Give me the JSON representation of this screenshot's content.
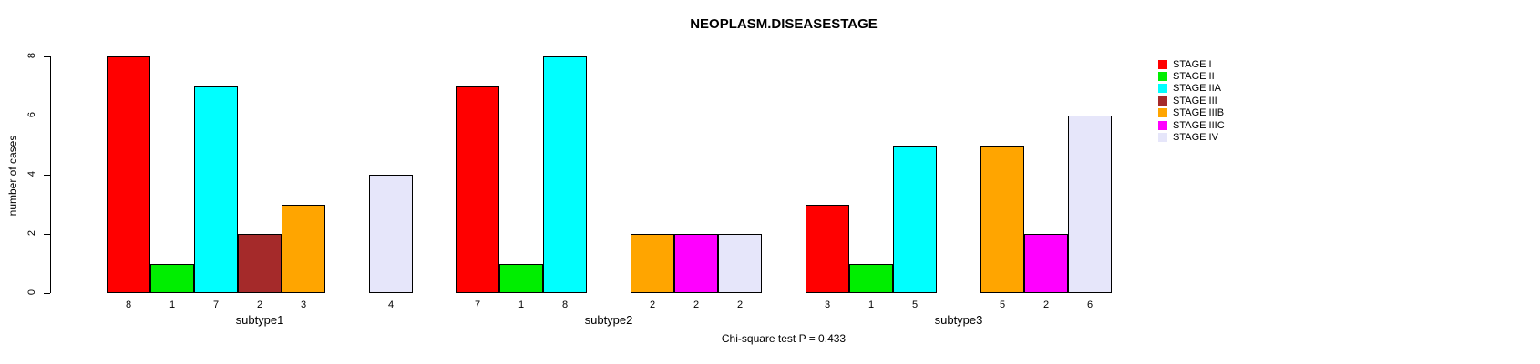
{
  "title": "NEOPLASM.DISEASESTAGE",
  "footer": {
    "annotation": "Chi-square test P = 0.433"
  },
  "y_axis": {
    "label": "number of cases",
    "ticks": [
      0,
      2,
      4,
      6,
      8
    ]
  },
  "legend": {
    "position": "top-right"
  },
  "chart_data": {
    "type": "bar",
    "title": "NEOPLASM.DISEASESTAGE",
    "xlabel": "",
    "ylabel": "number of cases",
    "ylim": [
      0,
      8
    ],
    "y_ticks": [
      0,
      2,
      4,
      6,
      8
    ],
    "grid": false,
    "legend_position": "right",
    "categories": [
      "subtype1",
      "subtype2",
      "subtype3"
    ],
    "series": [
      {
        "name": "STAGE I",
        "color": "#FF0000",
        "values": [
          8,
          7,
          3
        ]
      },
      {
        "name": "STAGE II",
        "color": "#00EE00",
        "values": [
          1,
          1,
          1
        ]
      },
      {
        "name": "STAGE IIA",
        "color": "#00FFFF",
        "values": [
          7,
          8,
          5
        ]
      },
      {
        "name": "STAGE III",
        "color": "#A52A2A",
        "values": [
          2,
          0,
          0
        ]
      },
      {
        "name": "STAGE IIIB",
        "color": "#FFA500",
        "values": [
          3,
          2,
          5
        ]
      },
      {
        "name": "STAGE IIIC",
        "color": "#FF00FF",
        "values": [
          0,
          2,
          2
        ]
      },
      {
        "name": "STAGE IV",
        "color": "#E6E6FA",
        "values": [
          4,
          2,
          6
        ]
      }
    ],
    "bar_value_labels_note": "each non-zero bar shows its count below the bar; zero-count stages have no bar and no label",
    "annotation": "Chi-square test P = 0.433"
  }
}
